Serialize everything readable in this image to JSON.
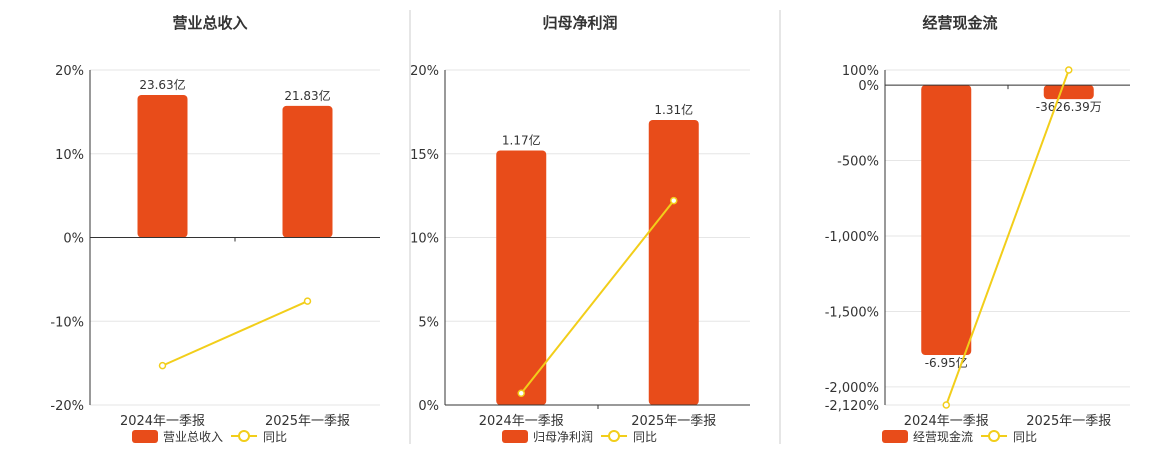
{
  "colors": {
    "bar": "#E84C1A",
    "line": "#F2CE1A",
    "point_fill": "#ffffff"
  },
  "chart_data": [
    {
      "type": "bar",
      "title": "营业总收入",
      "categories": [
        "2024年一季报",
        "2025年一季报"
      ],
      "series": [
        {
          "name": "营业总收入",
          "type": "bar",
          "values": [
            23.63,
            21.83
          ],
          "labels": [
            "23.63亿",
            "21.83亿"
          ]
        },
        {
          "name": "同比",
          "type": "line",
          "values": [
            -15.3,
            -7.6
          ]
        }
      ],
      "yaxis": {
        "ticks": [
          20,
          10,
          0,
          -10,
          -20
        ],
        "tick_labels": [
          "20%",
          "10%",
          "0%",
          "-10%",
          "-20%"
        ],
        "ylim": [
          -20,
          20
        ]
      }
    },
    {
      "type": "bar",
      "title": "归母净利润",
      "categories": [
        "2024年一季报",
        "2025年一季报"
      ],
      "series": [
        {
          "name": "归母净利润",
          "type": "bar",
          "values": [
            1.17,
            1.31
          ],
          "labels": [
            "1.17亿",
            "1.31亿"
          ]
        },
        {
          "name": "同比",
          "type": "line",
          "values": [
            0.7,
            12.2
          ]
        }
      ],
      "yaxis": {
        "ticks": [
          20,
          15,
          10,
          5,
          0
        ],
        "tick_labels": [
          "20%",
          "15%",
          "10%",
          "5%",
          "0%"
        ],
        "ylim": [
          0,
          20
        ]
      }
    },
    {
      "type": "bar",
      "title": "经营现金流",
      "categories": [
        "2024年一季报",
        "2025年一季报"
      ],
      "series": [
        {
          "name": "经营现金流",
          "type": "bar",
          "values": [
            -6.95,
            -0.362639
          ],
          "labels": [
            "-6.95亿",
            "-3626.39万"
          ]
        },
        {
          "name": "同比",
          "type": "line",
          "values": [
            -2120,
            100
          ]
        }
      ],
      "yaxis": {
        "ticks": [
          100,
          0,
          -500,
          -1000,
          -1500,
          -2000,
          -2120
        ],
        "tick_labels": [
          "100%",
          "0%",
          "-500%",
          "-1,000%",
          "-1,500%",
          "-2,000%",
          "-2,120%"
        ],
        "ylim": [
          -2120,
          100
        ]
      }
    }
  ]
}
